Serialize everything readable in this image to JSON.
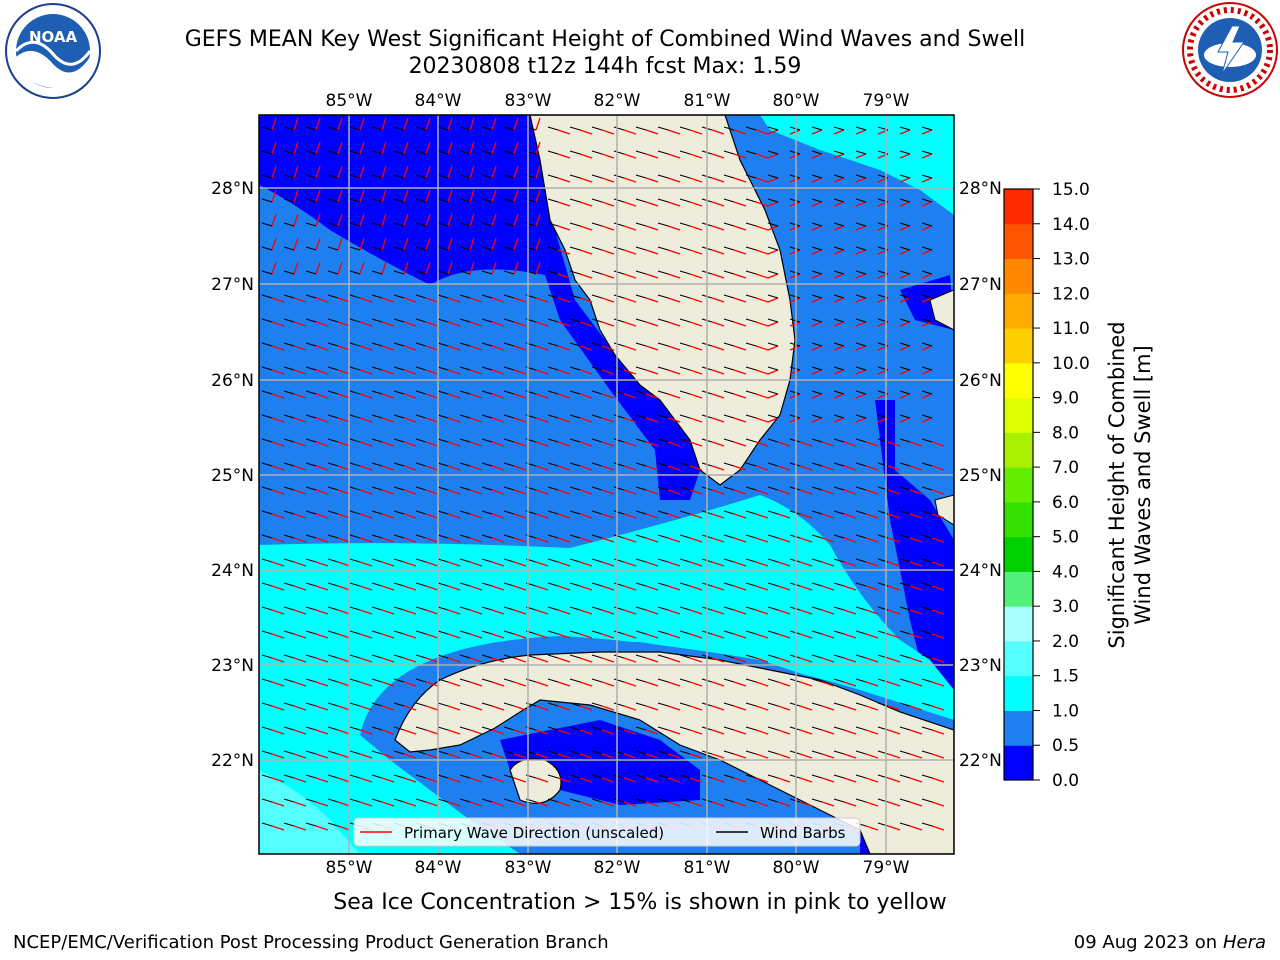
{
  "title_line1": "GEFS MEAN Key West Significant Height of Combined Wind Waves and Swell",
  "title_line2": "20230808 t12z 144h fcst   Max: 1.59",
  "map": {
    "lon_labels": [
      "85°W",
      "84°W",
      "83°W",
      "82°W",
      "81°W",
      "80°W",
      "79°W"
    ],
    "lat_labels": [
      "28°N",
      "27°N",
      "26°N",
      "25°N",
      "24°N",
      "23°N",
      "22°N"
    ],
    "legend": {
      "wave_label": "Primary Wave Direction (unscaled)",
      "wind_label": "Wind Barbs"
    }
  },
  "colorbar": {
    "label_line1": "Significant Height of Combined",
    "label_line2": "Wind Waves and Swell [m]",
    "ticks": [
      "0.0",
      "0.5",
      "1.0",
      "1.5",
      "2.0",
      "3.0",
      "4.0",
      "5.0",
      "6.0",
      "7.0",
      "8.0",
      "9.0",
      "10.0",
      "11.0",
      "12.0",
      "13.0",
      "14.0",
      "15.0"
    ],
    "colors": [
      "#0000ff",
      "#1e7ff0",
      "#00ffff",
      "#55ffff",
      "#aaffff",
      "#50f07a",
      "#00d000",
      "#33e000",
      "#66ee00",
      "#aaee00",
      "#ddff00",
      "#ffff00",
      "#ffd000",
      "#ffaa00",
      "#ff8800",
      "#ff5500",
      "#ff2a00",
      "#ff0000"
    ]
  },
  "footer": {
    "ice_note": "Sea Ice Concentration > 15% is shown in pink to yellow",
    "credit": "NCEP/EMC/Verification Post Processing Product Generation Branch",
    "date": "09 Aug 2023 on",
    "host": "Hera"
  },
  "logos": {
    "noaa_text": "NOAA",
    "nws_text": "NATIONAL WEATHER SERVICE"
  }
}
